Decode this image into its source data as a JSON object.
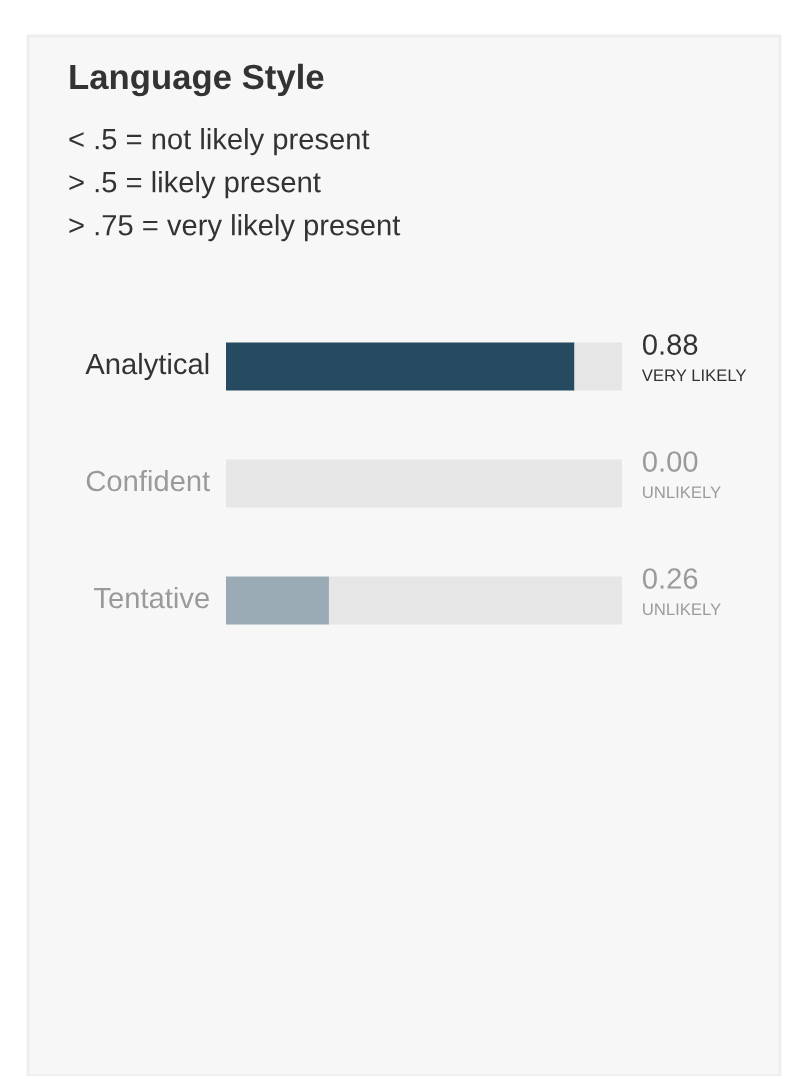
{
  "chart_data": {
    "type": "bar",
    "orientation": "horizontal",
    "stacked": true,
    "title": "Language Style",
    "subtitle": "< .5 = not likely present\n> .5 = likely present\n> .75 = very likely present",
    "categories": [
      "Analytical",
      "Confident",
      "Tentative"
    ],
    "series": [
      {
        "values": [
          0.88,
          0.0,
          0.26
        ],
        "colors": [
          "#264a5f",
          "#e0e0e0",
          "#9aabb5"
        ],
        "value_labels": [
          "0.88",
          "0.00",
          "0.26"
        ]
      },
      {
        "values": [
          0.12,
          1.0,
          0.74
        ],
        "color": "#e6e6e6"
      }
    ],
    "annotations": [
      "VERY LIKELY",
      "UNLIKELY",
      "UNLIKELY"
    ],
    "xlim": [
      0,
      1
    ]
  }
}
